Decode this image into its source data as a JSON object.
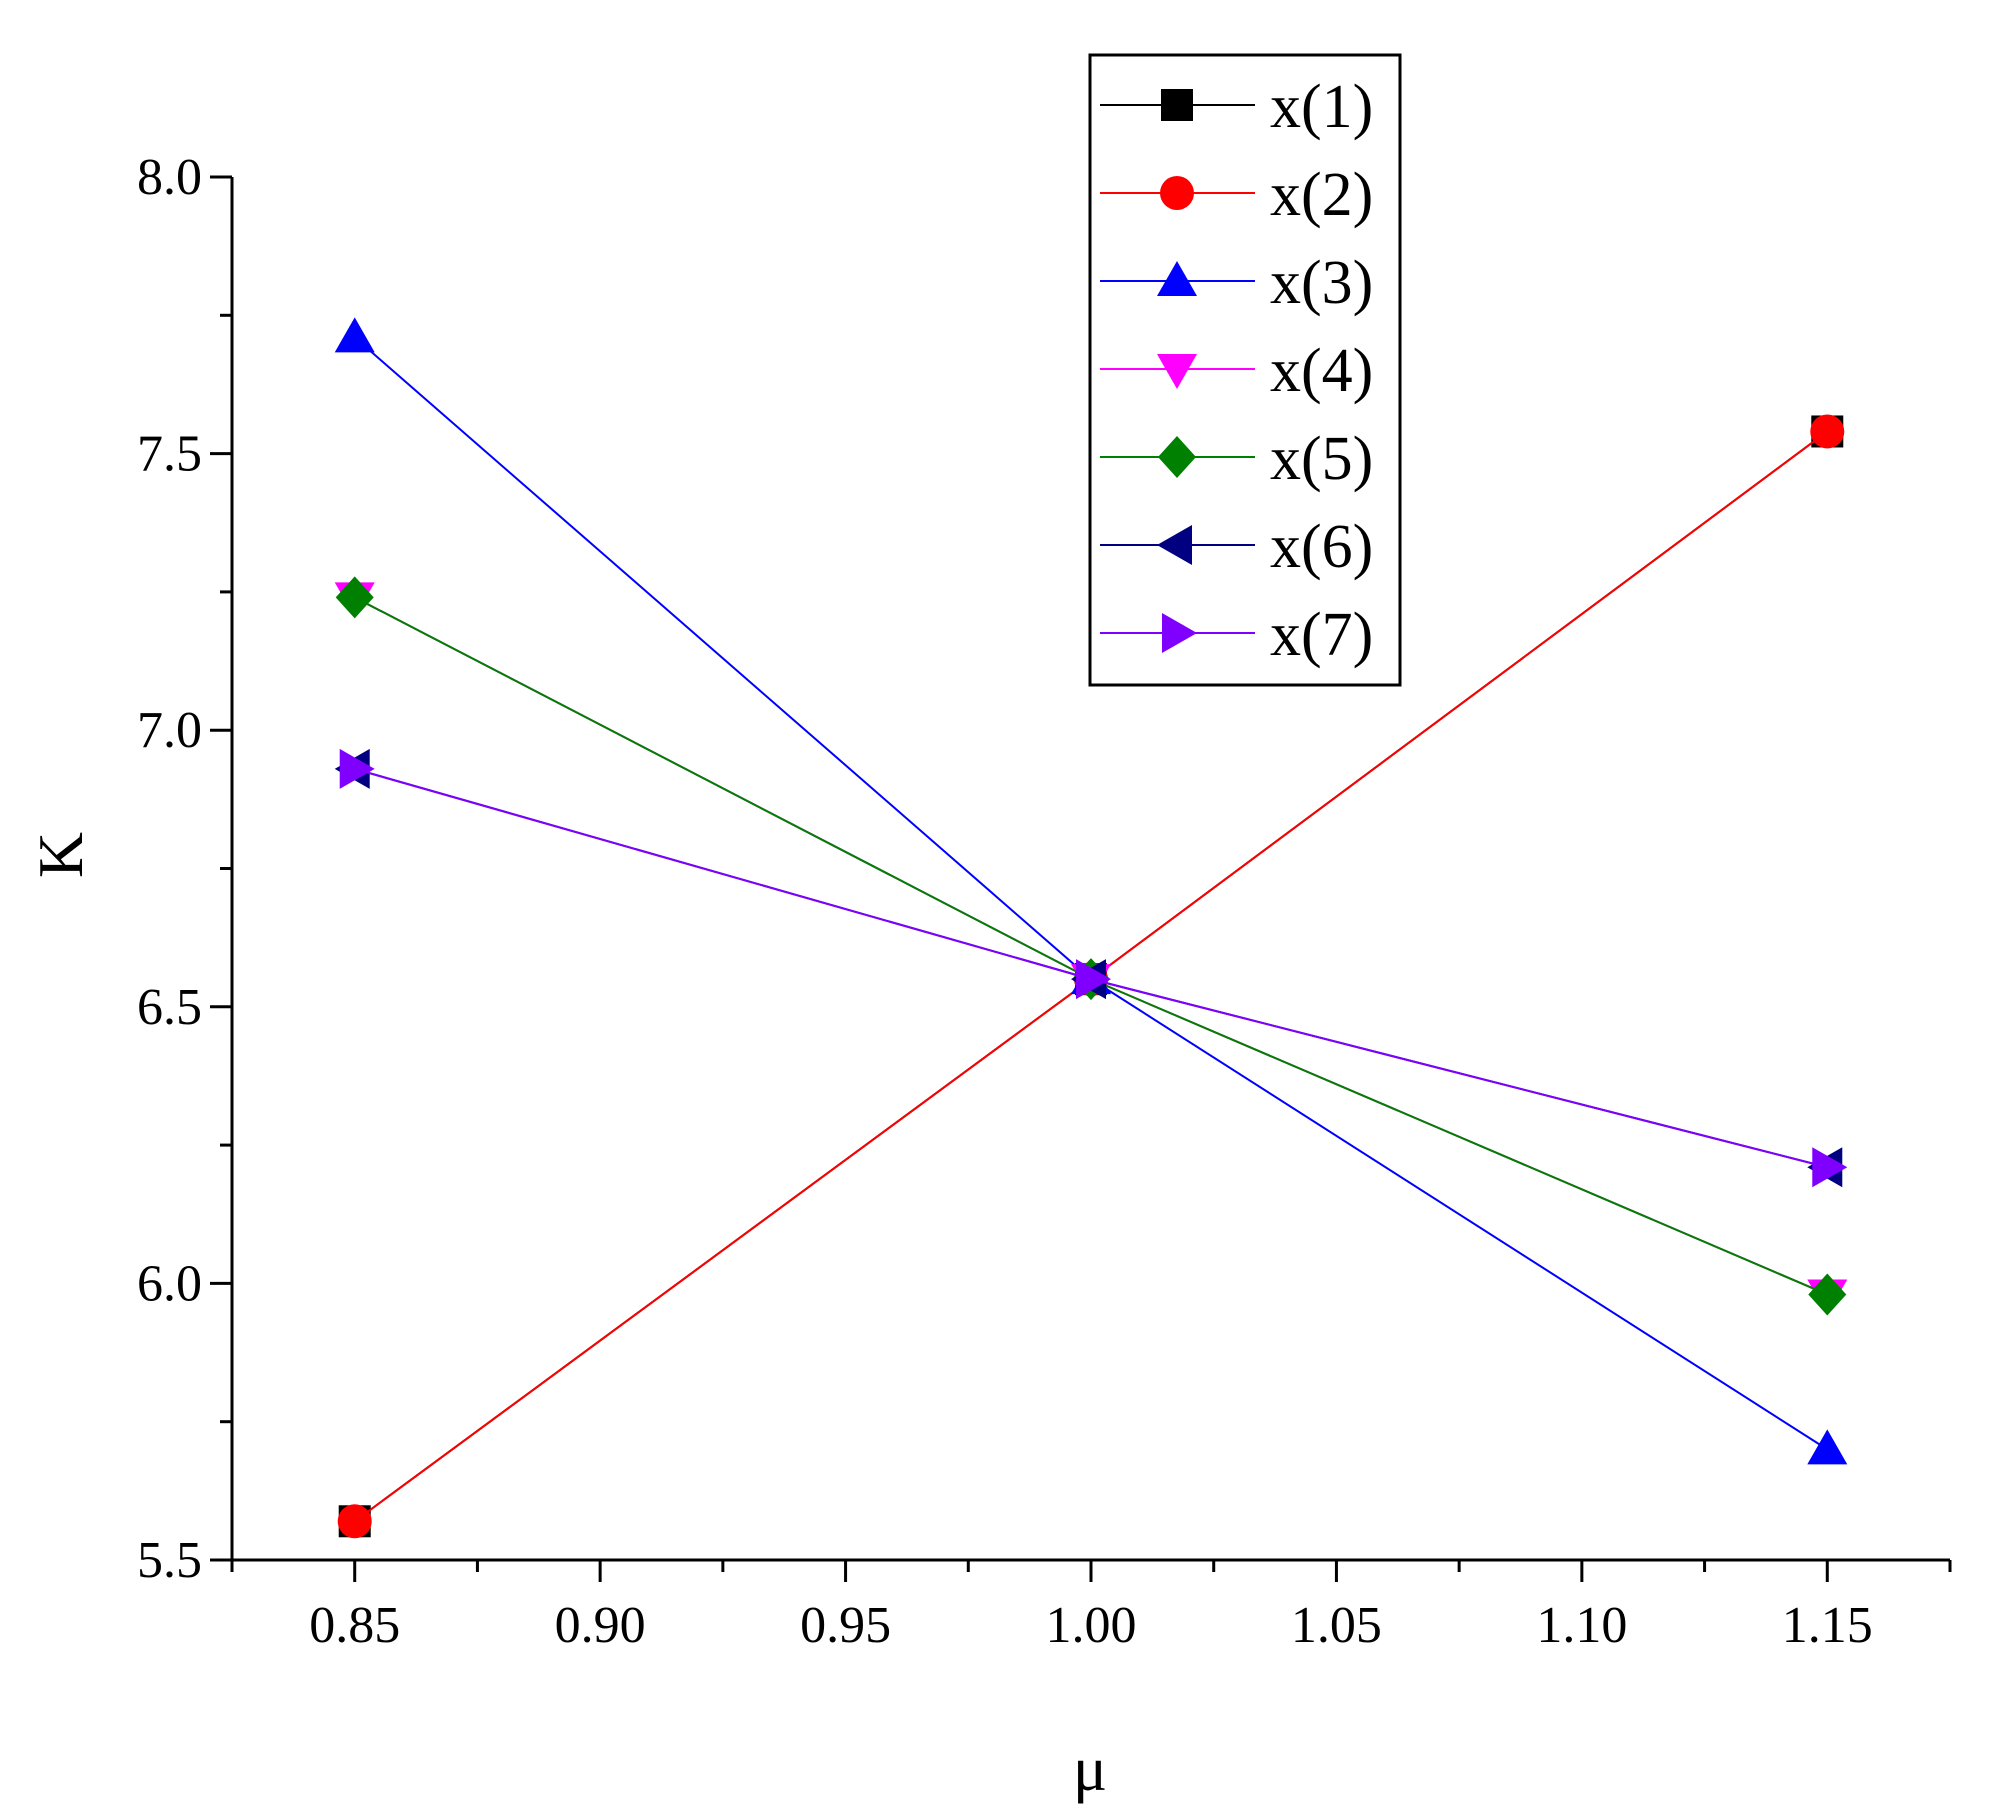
{
  "chart_data": {
    "type": "line",
    "title": "",
    "xlabel": "μ",
    "ylabel": "K",
    "xlim": [
      0.825,
      1.175
    ],
    "ylim": [
      5.5,
      8.0
    ],
    "xticks": [
      0.85,
      0.9,
      0.95,
      1.0,
      1.05,
      1.1,
      1.15
    ],
    "xtick_labels": [
      "0.85",
      "0.90",
      "0.95",
      "1.00",
      "1.05",
      "1.10",
      "1.15"
    ],
    "yticks": [
      5.5,
      6.0,
      6.5,
      7.0,
      7.5,
      8.0
    ],
    "ytick_labels": [
      "5.5",
      "6.0",
      "6.5",
      "7.0",
      "7.5",
      "8.0"
    ],
    "grid": false,
    "legend_position": "top-right",
    "x": [
      0.85,
      1.0,
      1.15
    ],
    "series": [
      {
        "name": "x(1)",
        "color": "#000000",
        "marker": "square",
        "values": [
          5.57,
          6.55,
          7.54
        ]
      },
      {
        "name": "x(2)",
        "color": "#ff0000",
        "marker": "circle",
        "values": [
          5.57,
          6.55,
          7.54
        ]
      },
      {
        "name": "x(3)",
        "color": "#0000ff",
        "marker": "triangle-up",
        "values": [
          7.71,
          6.55,
          5.7
        ]
      },
      {
        "name": "x(4)",
        "color": "#ff00ff",
        "marker": "triangle-down",
        "values": [
          7.24,
          6.55,
          5.98
        ]
      },
      {
        "name": "x(5)",
        "color": "#008000",
        "marker": "diamond",
        "values": [
          7.24,
          6.55,
          5.98
        ]
      },
      {
        "name": "x(6)",
        "color": "#000080",
        "marker": "triangle-left",
        "values": [
          6.93,
          6.55,
          6.21
        ]
      },
      {
        "name": "x(7)",
        "color": "#8000ff",
        "marker": "triangle-right",
        "values": [
          6.93,
          6.55,
          6.21
        ]
      }
    ]
  }
}
